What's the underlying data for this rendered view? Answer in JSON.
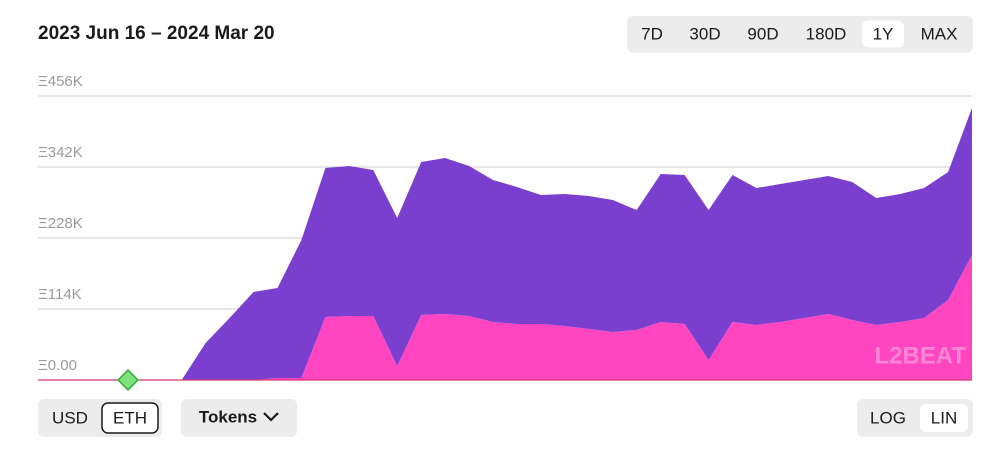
{
  "chart_data": {
    "type": "stacked-area",
    "title": "2023 Jun 16 – 2024 Mar 20",
    "series": [
      {
        "color": "#ff46c0",
        "values": [
          0,
          0,
          0,
          0,
          0,
          0,
          0,
          0,
          0,
          0,
          3200,
          3200,
          101200,
          102800,
          102800,
          22500,
          104400,
          106000,
          102800,
          93100,
          89900,
          89900,
          86700,
          81900,
          77100,
          80300,
          93100,
          89900,
          32100,
          93100,
          88300,
          93100,
          99500,
          106000,
          96300,
          88300,
          93100,
          99500,
          128400,
          200700
        ]
      },
      {
        "color": "#7b3fd0",
        "values": [
          0,
          0,
          0,
          0,
          0,
          0,
          0,
          59400,
          99500,
          141300,
          144500,
          221600,
          239200,
          240800,
          234400,
          237600,
          245600,
          250400,
          240800,
          228000,
          220000,
          207100,
          211900,
          213500,
          211900,
          192700,
          237700,
          239200,
          240900,
          236000,
          220000,
          221600,
          221600,
          221500,
          221600,
          203900,
          205500,
          208800,
          205600,
          236000
        ]
      }
    ],
    "ylim": [
      0,
      456000
    ],
    "yticks": [
      {
        "value": 456000,
        "label": "Ξ456K"
      },
      {
        "value": 342000,
        "label": "Ξ342K"
      },
      {
        "value": 228000,
        "label": "Ξ228K"
      },
      {
        "value": 114000,
        "label": "Ξ114K"
      },
      {
        "value": 0,
        "label": "Ξ0.00"
      }
    ],
    "grid": true,
    "log_scale": false,
    "watermark": "L2BEAT"
  },
  "controls": {
    "ranges": [
      "7D",
      "30D",
      "90D",
      "180D",
      "1Y",
      "MAX"
    ],
    "range_selected": 4,
    "units": [
      "USD",
      "ETH"
    ],
    "unit_selected": 1,
    "tokens": "Tokens",
    "scales": [
      "LOG",
      "LIN"
    ],
    "scale_selected": 1
  }
}
